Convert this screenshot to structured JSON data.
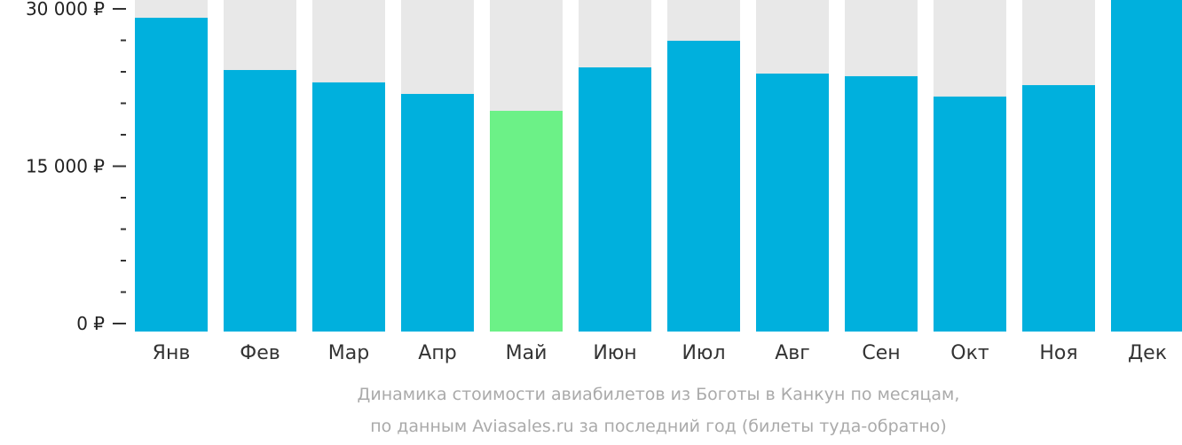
{
  "chart_data": {
    "type": "bar",
    "title": "Динамика стоимости авиабилетов из Боготы в Канкун по месяцам,",
    "subtitle": "по данным Aviasales.ru за последний год (билеты туда-обратно)",
    "categories": [
      "Янв",
      "Фев",
      "Мар",
      "Апр",
      "Май",
      "Июн",
      "Июл",
      "Авг",
      "Сен",
      "Окт",
      "Ноя",
      "Дек"
    ],
    "values": [
      29150,
      24170,
      22990,
      21890,
      20280,
      24420,
      26960,
      23830,
      23580,
      21640,
      22730,
      31000
    ],
    "highlight_index": 4,
    "ylim": [
      0,
      30000
    ],
    "yticks": [
      {
        "value": 0,
        "label": "0 ₽"
      },
      {
        "value": 15000,
        "label": "15 000 ₽"
      },
      {
        "value": 30000,
        "label": "30 000 ₽"
      }
    ],
    "colors": {
      "bar": "#00b0dd",
      "highlight": "#6cf187",
      "background": "#e8e8e8"
    }
  }
}
